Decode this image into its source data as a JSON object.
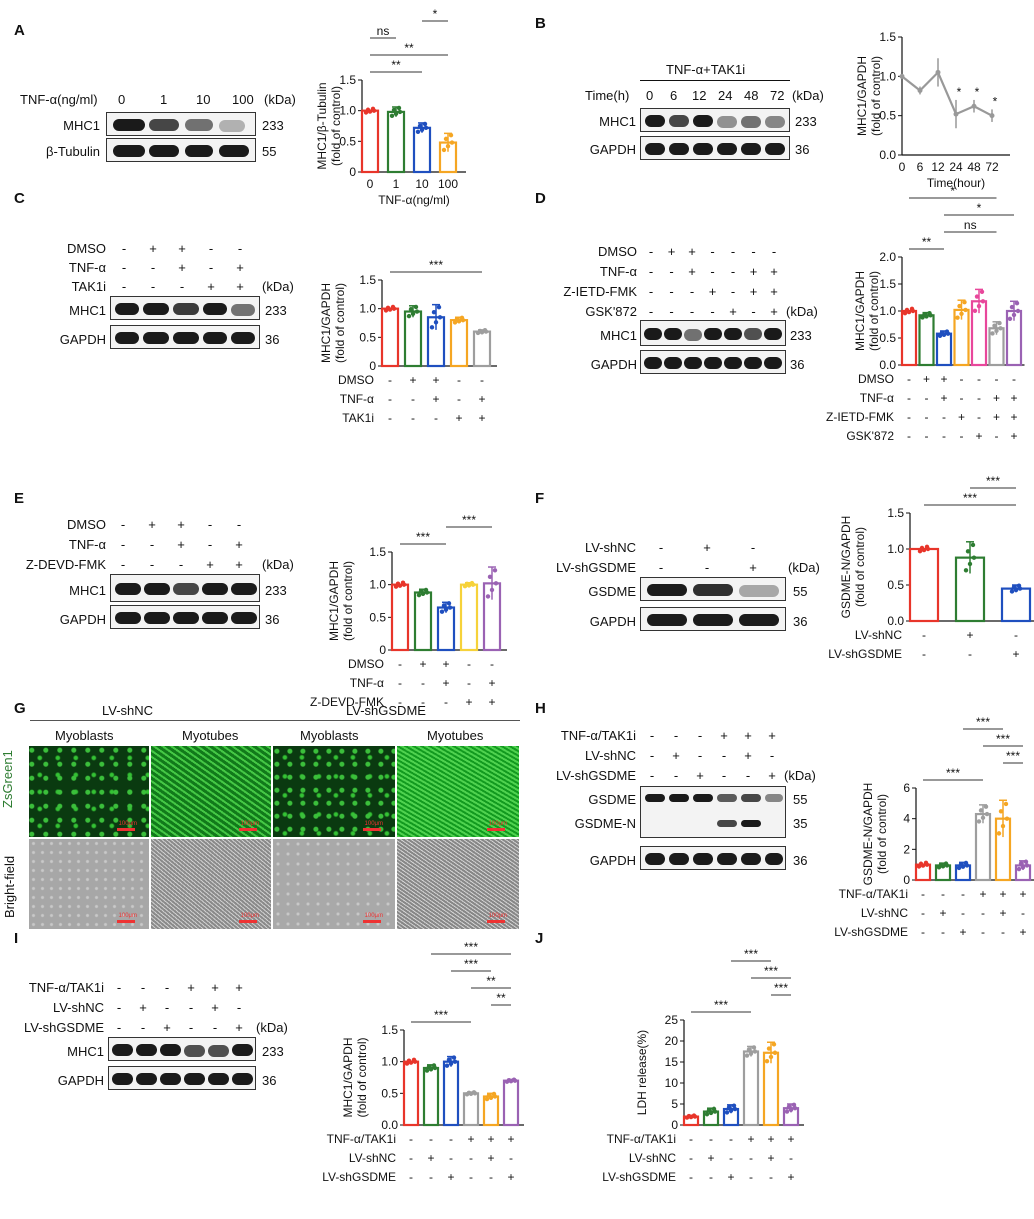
{
  "panel_letters": [
    "A",
    "B",
    "C",
    "D",
    "E",
    "F",
    "G",
    "H",
    "I",
    "J"
  ],
  "colors": {
    "red": "#e8352a",
    "green": "#2e7d32",
    "blue": "#1f4fbf",
    "orange": "#f5a623",
    "gray": "#9e9e9e",
    "pink": "#e8479b",
    "yellow": "#f6d23a",
    "purple": "#9a62b3"
  },
  "blots": {
    "A": {
      "cond_label": "TNF-α(ng/ml)",
      "lanes": [
        "0",
        "1",
        "10",
        "100"
      ],
      "kda_label": "(kDa)",
      "rows": [
        {
          "name": "MHC1",
          "kda": "233"
        },
        {
          "name": "β-Tubulin",
          "kda": "55"
        }
      ]
    },
    "B": {
      "header": "TNF-α+TAK1i",
      "cond_label": "Time(h)",
      "lanes": [
        "0",
        "6",
        "12",
        "24",
        "48",
        "72"
      ],
      "kda_label": "(kDa)",
      "rows": [
        {
          "name": "MHC1",
          "kda": "233"
        },
        {
          "name": "GAPDH",
          "kda": "36"
        }
      ]
    },
    "C": {
      "cond_rows": [
        {
          "name": "DMSO",
          "signs": [
            "-",
            "+",
            "+",
            "-",
            "-"
          ]
        },
        {
          "name": "TNF-α",
          "signs": [
            "-",
            "-",
            "+",
            "-",
            "+"
          ]
        },
        {
          "name": "TAK1i",
          "signs": [
            "-",
            "-",
            "-",
            "+",
            "+"
          ]
        }
      ],
      "kda_label": "(kDa)",
      "rows": [
        {
          "name": "MHC1",
          "kda": "233"
        },
        {
          "name": "GAPDH",
          "kda": "36"
        }
      ]
    },
    "D": {
      "cond_rows": [
        {
          "name": "DMSO",
          "signs": [
            "-",
            "+",
            "+",
            "-",
            "-",
            "-",
            "-"
          ]
        },
        {
          "name": "TNF-α",
          "signs": [
            "-",
            "-",
            "+",
            "-",
            "-",
            "+",
            "+"
          ]
        },
        {
          "name": "Z-IETD-FMK",
          "signs": [
            "-",
            "-",
            "-",
            "+",
            "-",
            "+",
            "+"
          ]
        },
        {
          "name": "GSK'872",
          "signs": [
            "-",
            "-",
            "-",
            "-",
            "+",
            "-",
            "+"
          ]
        }
      ],
      "kda_label": "(kDa)",
      "rows": [
        {
          "name": "MHC1",
          "kda": "233"
        },
        {
          "name": "GAPDH",
          "kda": "36"
        }
      ]
    },
    "E": {
      "cond_rows": [
        {
          "name": "DMSO",
          "signs": [
            "-",
            "+",
            "+",
            "-",
            "-"
          ]
        },
        {
          "name": "TNF-α",
          "signs": [
            "-",
            "-",
            "+",
            "-",
            "+"
          ]
        },
        {
          "name": "Z-DEVD-FMK",
          "signs": [
            "-",
            "-",
            "-",
            "+",
            "+"
          ]
        }
      ],
      "kda_label": "(kDa)",
      "rows": [
        {
          "name": "MHC1",
          "kda": "233"
        },
        {
          "name": "GAPDH",
          "kda": "36"
        }
      ]
    },
    "F": {
      "cond_rows": [
        {
          "name": "LV-shNC",
          "signs": [
            "-",
            "+",
            "-"
          ]
        },
        {
          "name": "LV-shGSDME",
          "signs": [
            "-",
            "-",
            "+"
          ]
        }
      ],
      "kda_label": "(kDa)",
      "rows": [
        {
          "name": "GSDME",
          "kda": "55"
        },
        {
          "name": "GAPDH",
          "kda": "36"
        }
      ]
    },
    "H": {
      "cond_rows": [
        {
          "name": "TNF-α/TAK1i",
          "signs": [
            "-",
            "-",
            "-",
            "+",
            "+",
            "+"
          ]
        },
        {
          "name": "LV-shNC",
          "signs": [
            "-",
            "+",
            "-",
            "-",
            "+",
            "-"
          ]
        },
        {
          "name": "LV-shGSDME",
          "signs": [
            "-",
            "-",
            "+",
            "-",
            "-",
            "+"
          ]
        }
      ],
      "kda_label": "(kDa)",
      "rows": [
        {
          "name": "GSDME",
          "kda": "55"
        },
        {
          "name": "GSDME-N",
          "kda": "35"
        },
        {
          "name": "GAPDH",
          "kda": "36"
        }
      ]
    },
    "I": {
      "cond_rows": [
        {
          "name": "TNF-α/TAK1i",
          "signs": [
            "-",
            "-",
            "-",
            "+",
            "+",
            "+"
          ]
        },
        {
          "name": "LV-shNC",
          "signs": [
            "-",
            "+",
            "-",
            "-",
            "+",
            "-"
          ]
        },
        {
          "name": "LV-shGSDME",
          "signs": [
            "-",
            "-",
            "+",
            "-",
            "-",
            "+"
          ]
        }
      ],
      "kda_label": "(kDa)",
      "rows": [
        {
          "name": "MHC1",
          "kda": "233"
        },
        {
          "name": "GAPDH",
          "kda": "36"
        }
      ]
    }
  },
  "microscopy": {
    "groups": [
      "LV-shNC",
      "LV-shGSDME"
    ],
    "columns": [
      "Myoblasts",
      "Myotubes",
      "Myoblasts",
      "Myotubes"
    ],
    "row_labels": [
      "ZsGreen1",
      "Bright-field"
    ],
    "scale_text": "100μm"
  },
  "chart_data": [
    {
      "id": "A",
      "type": "bar",
      "ylabel": "MHC1/β-Tubulin\n(fold of control)",
      "xlabel": "TNF-α(ng/ml)",
      "categories": [
        "0",
        "1",
        "10",
        "100"
      ],
      "values": [
        1.0,
        0.98,
        0.72,
        0.48
      ],
      "errors": [
        0.0,
        0.08,
        0.08,
        0.15
      ],
      "ylim": [
        0,
        1.5
      ],
      "yticks": [
        "0",
        "0.5",
        "1.0",
        "1.5"
      ],
      "colors": [
        "red",
        "green",
        "blue",
        "orange"
      ],
      "sig": [
        {
          "a": 0,
          "b": 2,
          "label": "**"
        },
        {
          "a": 0,
          "b": 3,
          "label": "**"
        },
        {
          "a": 0,
          "b": 1,
          "label": "ns"
        },
        {
          "a": 2,
          "b": 3,
          "label": "*"
        }
      ]
    },
    {
      "id": "B",
      "type": "line",
      "ylabel": "MHC1/GAPDH\n(fold of control)",
      "xlabel": "Time(hour)",
      "x": [
        "0",
        "6",
        "12",
        "24",
        "48",
        "72"
      ],
      "values": [
        1.0,
        0.82,
        1.05,
        0.52,
        0.62,
        0.5
      ],
      "errors": [
        0.0,
        0.05,
        0.18,
        0.18,
        0.08,
        0.08
      ],
      "ylim": [
        0,
        1.5
      ],
      "yticks": [
        "0.0",
        "0.5",
        "1.0",
        "1.5"
      ],
      "point_sig": [
        "",
        "",
        "",
        "*",
        "*",
        "*"
      ]
    },
    {
      "id": "C",
      "type": "bar",
      "ylabel": "MHC1/GAPDH\n(fold of control)",
      "values": [
        1.0,
        0.95,
        0.85,
        0.8,
        0.6
      ],
      "errors": [
        0.0,
        0.1,
        0.22,
        0.05,
        0.03
      ],
      "ylim": [
        0,
        1.5
      ],
      "yticks": [
        "0",
        "0.5",
        "1.0",
        "1.5"
      ],
      "colors": [
        "red",
        "green",
        "blue",
        "orange",
        "gray"
      ],
      "cond_rows": [
        {
          "name": "DMSO",
          "signs": [
            "-",
            "+",
            "+",
            "-",
            "-"
          ]
        },
        {
          "name": "TNF-α",
          "signs": [
            "-",
            "-",
            "+",
            "-",
            "+"
          ]
        },
        {
          "name": "TAK1i",
          "signs": [
            "-",
            "-",
            "-",
            "+",
            "+"
          ]
        }
      ],
      "sig": [
        {
          "a": 0,
          "b": 4,
          "label": "***"
        }
      ]
    },
    {
      "id": "D",
      "type": "bar",
      "ylabel": "MHC1/GAPDH\n(fold of control)",
      "values": [
        1.0,
        0.92,
        0.58,
        1.02,
        1.18,
        0.68,
        1.0
      ],
      "errors": [
        0.0,
        0.05,
        0.05,
        0.18,
        0.22,
        0.12,
        0.18
      ],
      "ylim": [
        0,
        2.0
      ],
      "yticks": [
        "0.0",
        "0.5",
        "1.0",
        "1.5",
        "2.0"
      ],
      "colors": [
        "red",
        "green",
        "blue",
        "orange",
        "pink",
        "gray",
        "purple"
      ],
      "cond_rows": [
        {
          "name": "DMSO",
          "signs": [
            "-",
            "+",
            "+",
            "-",
            "-",
            "-",
            "-"
          ]
        },
        {
          "name": "TNF-α",
          "signs": [
            "-",
            "-",
            "+",
            "-",
            "-",
            "+",
            "+"
          ]
        },
        {
          "name": "Z-IETD-FMK",
          "signs": [
            "-",
            "-",
            "-",
            "+",
            "-",
            "+",
            "+"
          ]
        },
        {
          "name": "GSK'872",
          "signs": [
            "-",
            "-",
            "-",
            "-",
            "+",
            "-",
            "+"
          ]
        }
      ],
      "sig": [
        {
          "a": 0,
          "b": 2,
          "label": "**"
        },
        {
          "a": 2,
          "b": 5,
          "label": "ns"
        },
        {
          "a": 2,
          "b": 6,
          "label": "*"
        },
        {
          "a": 0,
          "b": 5,
          "label": "*"
        }
      ]
    },
    {
      "id": "E",
      "type": "bar",
      "ylabel": "MHC1/GAPDH\n(fold of control)",
      "values": [
        1.0,
        0.88,
        0.65,
        1.0,
        1.02
      ],
      "errors": [
        0.0,
        0.05,
        0.08,
        0.03,
        0.25
      ],
      "ylim": [
        0,
        1.5
      ],
      "yticks": [
        "0",
        "0.5",
        "1.0",
        "1.5"
      ],
      "colors": [
        "red",
        "green",
        "blue",
        "yellow",
        "purple"
      ],
      "cond_rows": [
        {
          "name": "DMSO",
          "signs": [
            "-",
            "+",
            "+",
            "-",
            "-"
          ]
        },
        {
          "name": "TNF-α",
          "signs": [
            "-",
            "-",
            "+",
            "-",
            "+"
          ]
        },
        {
          "name": "Z-DEVD-FMK",
          "signs": [
            "-",
            "-",
            "-",
            "+",
            "+"
          ]
        }
      ],
      "sig": [
        {
          "a": 0,
          "b": 2,
          "label": "***"
        },
        {
          "a": 2,
          "b": 4,
          "label": "***"
        }
      ]
    },
    {
      "id": "F",
      "type": "bar",
      "ylabel": "GSDME-N/GAPDH\n(fold of control)",
      "values": [
        1.0,
        0.88,
        0.45
      ],
      "errors": [
        0.0,
        0.22,
        0.05
      ],
      "ylim": [
        0,
        1.5
      ],
      "yticks": [
        "0.0",
        "0.5",
        "1.0",
        "1.5"
      ],
      "colors": [
        "red",
        "green",
        "blue"
      ],
      "cond_rows": [
        {
          "name": "LV-shNC",
          "signs": [
            "-",
            "+",
            "-"
          ]
        },
        {
          "name": "LV-shGSDME",
          "signs": [
            "-",
            "-",
            "+"
          ]
        }
      ],
      "sig": [
        {
          "a": 0,
          "b": 2,
          "label": "***"
        },
        {
          "a": 1,
          "b": 2,
          "label": "***"
        }
      ]
    },
    {
      "id": "H",
      "type": "bar",
      "ylabel": "GSDME-N/GAPDH\n(fold of control)",
      "values": [
        1.0,
        0.95,
        0.95,
        4.3,
        4.0,
        0.95
      ],
      "errors": [
        0.0,
        0.15,
        0.2,
        0.6,
        1.2,
        0.3
      ],
      "ylim": [
        0,
        6
      ],
      "yticks": [
        "0",
        "2",
        "4",
        "6"
      ],
      "colors": [
        "red",
        "green",
        "blue",
        "gray",
        "orange",
        "purple"
      ],
      "cond_rows": [
        {
          "name": "TNF-α/TAK1i",
          "signs": [
            "-",
            "-",
            "-",
            "+",
            "+",
            "+"
          ]
        },
        {
          "name": "LV-shNC",
          "signs": [
            "-",
            "+",
            "-",
            "-",
            "+",
            "-"
          ]
        },
        {
          "name": "LV-shGSDME",
          "signs": [
            "-",
            "-",
            "+",
            "-",
            "-",
            "+"
          ]
        }
      ],
      "sig": [
        {
          "a": 0,
          "b": 3,
          "label": "***"
        },
        {
          "a": 4,
          "b": 5,
          "label": "***"
        },
        {
          "a": 3,
          "b": 5,
          "label": "***"
        },
        {
          "a": 2,
          "b": 4,
          "label": "***"
        }
      ]
    },
    {
      "id": "I",
      "type": "bar",
      "ylabel": "MHC1/GAPDH\n(fold of control)",
      "values": [
        1.0,
        0.9,
        1.0,
        0.5,
        0.45,
        0.7
      ],
      "errors": [
        0.0,
        0.05,
        0.08,
        0.02,
        0.05,
        0.02
      ],
      "ylim": [
        0,
        1.5
      ],
      "yticks": [
        "0.0",
        "0.5",
        "1.0",
        "1.5"
      ],
      "colors": [
        "red",
        "green",
        "blue",
        "gray",
        "orange",
        "purple"
      ],
      "cond_rows": [
        {
          "name": "TNF-α/TAK1i",
          "signs": [
            "-",
            "-",
            "-",
            "+",
            "+",
            "+"
          ]
        },
        {
          "name": "LV-shNC",
          "signs": [
            "-",
            "+",
            "-",
            "-",
            "+",
            "-"
          ]
        },
        {
          "name": "LV-shGSDME",
          "signs": [
            "-",
            "-",
            "+",
            "-",
            "-",
            "+"
          ]
        }
      ],
      "sig": [
        {
          "a": 0,
          "b": 3,
          "label": "***"
        },
        {
          "a": 4,
          "b": 5,
          "label": "**"
        },
        {
          "a": 3,
          "b": 5,
          "label": "**"
        },
        {
          "a": 2,
          "b": 4,
          "label": "***"
        },
        {
          "a": 1,
          "b": 5,
          "label": "***"
        }
      ]
    },
    {
      "id": "J",
      "type": "bar",
      "ylabel": "LDH release(%)",
      "values": [
        2.0,
        3.2,
        3.8,
        17.5,
        17.2,
        4.0
      ],
      "errors": [
        0.3,
        0.8,
        1.0,
        1.2,
        2.5,
        1.0
      ],
      "ylim": [
        0,
        25
      ],
      "yticks": [
        "0",
        "5",
        "10",
        "15",
        "20",
        "25"
      ],
      "colors": [
        "red",
        "green",
        "blue",
        "gray",
        "orange",
        "purple"
      ],
      "cond_rows": [
        {
          "name": "TNF-α/TAK1i",
          "signs": [
            "-",
            "-",
            "-",
            "+",
            "+",
            "+"
          ]
        },
        {
          "name": "LV-shNC",
          "signs": [
            "-",
            "+",
            "-",
            "-",
            "+",
            "-"
          ]
        },
        {
          "name": "LV-shGSDME",
          "signs": [
            "-",
            "-",
            "+",
            "-",
            "-",
            "+"
          ]
        }
      ],
      "sig": [
        {
          "a": 0,
          "b": 3,
          "label": "***"
        },
        {
          "a": 4,
          "b": 5,
          "label": "***"
        },
        {
          "a": 3,
          "b": 5,
          "label": "***"
        },
        {
          "a": 2,
          "b": 4,
          "label": "***"
        }
      ]
    }
  ]
}
